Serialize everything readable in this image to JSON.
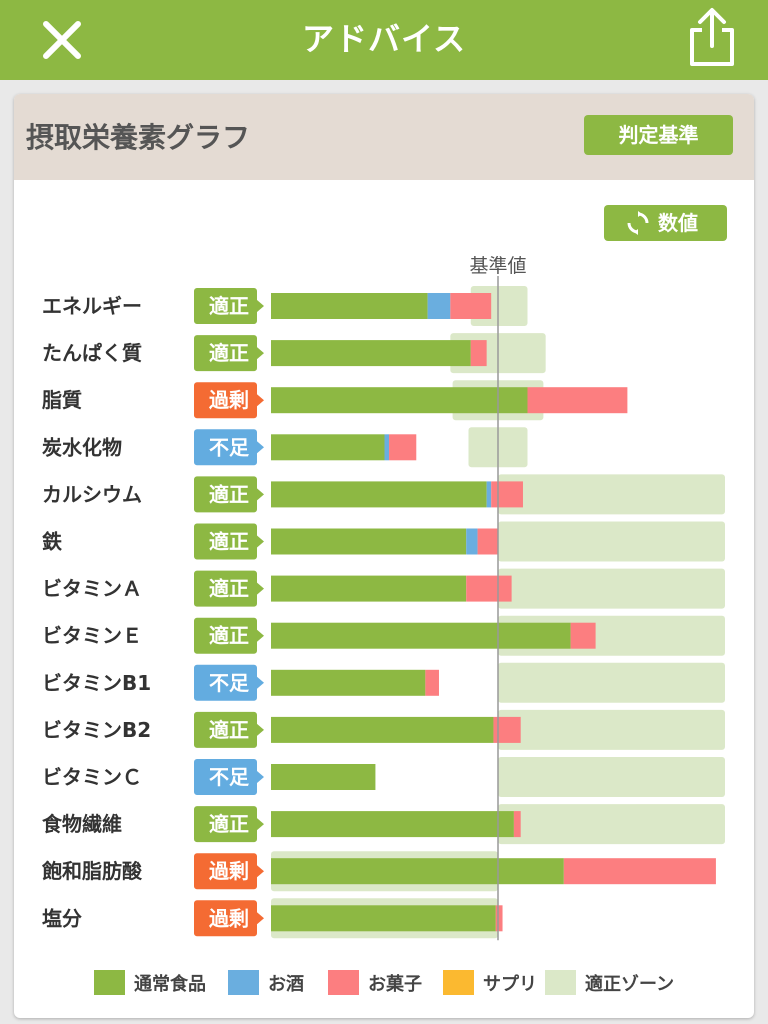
{
  "header": {
    "title": "アドバイス",
    "close_icon": "close-icon",
    "share_icon": "share-icon"
  },
  "card": {
    "title": "摂取栄養素グラフ",
    "criteria_button": "判定基準",
    "value_button": "数値",
    "value_button_icon": "refresh-icon"
  },
  "colors": {
    "header": "#8db843",
    "normal_food": "#8db843",
    "alcohol": "#6aaedf",
    "snacks": "#fc7e80",
    "supplement": "#fbb930",
    "zone": "#dbe8c8",
    "badge_adequate": "#8db843",
    "badge_excess": "#f46b33",
    "badge_deficient": "#63ace0"
  },
  "chart_data": {
    "type": "bar",
    "orientation": "horizontal",
    "stacked": true,
    "reference_label": "基準値",
    "value_unit_note": "values expressed as percent of reference value (基準値 = 100)",
    "xlim": [
      0,
      200
    ],
    "legend": [
      {
        "key": "normal_food",
        "label": "通常食品"
      },
      {
        "key": "alcohol",
        "label": "お酒"
      },
      {
        "key": "snacks",
        "label": "お菓子"
      },
      {
        "key": "supplement",
        "label": "サプリ"
      },
      {
        "key": "zone",
        "label": "適正ゾーン"
      }
    ],
    "legend_position": "bottom",
    "categories": [
      "エネルギー",
      "たんぱく質",
      "脂質",
      "炭水化物",
      "カルシウム",
      "鉄",
      "ビタミンＡ",
      "ビタミンＥ",
      "ビタミンB1",
      "ビタミンB2",
      "ビタミンＣ",
      "食物繊維",
      "飽和脂肪酸",
      "塩分"
    ],
    "status": [
      "適正",
      "適正",
      "過剰",
      "不足",
      "適正",
      "適正",
      "適正",
      "適正",
      "不足",
      "適正",
      "不足",
      "適正",
      "過剰",
      "過剰"
    ],
    "series": [
      {
        "name": "通常食品",
        "key": "normal_food",
        "values": [
          69,
          88,
          113,
          50,
          95,
          86,
          86,
          132,
          68,
          98,
          46,
          107,
          129,
          99
        ]
      },
      {
        "name": "お酒",
        "key": "alcohol",
        "values": [
          10,
          0,
          0,
          2,
          2,
          5,
          0,
          0,
          0,
          0,
          0,
          0,
          0,
          0
        ]
      },
      {
        "name": "お菓子",
        "key": "snacks",
        "values": [
          18,
          7,
          44,
          12,
          14,
          9,
          20,
          11,
          6,
          12,
          0,
          3,
          67,
          3
        ]
      },
      {
        "name": "サプリ",
        "key": "supplement",
        "values": [
          0,
          0,
          0,
          0,
          0,
          0,
          0,
          0,
          0,
          0,
          0,
          0,
          0,
          0
        ]
      }
    ],
    "zones": [
      [
        88,
        113
      ],
      [
        79,
        121
      ],
      [
        80,
        120
      ],
      [
        87,
        113
      ],
      [
        100,
        200
      ],
      [
        100,
        200
      ],
      [
        100,
        200
      ],
      [
        100,
        200
      ],
      [
        100,
        200
      ],
      [
        100,
        200
      ],
      [
        100,
        200
      ],
      [
        100,
        200
      ],
      [
        0,
        100
      ],
      [
        0,
        100
      ]
    ]
  }
}
